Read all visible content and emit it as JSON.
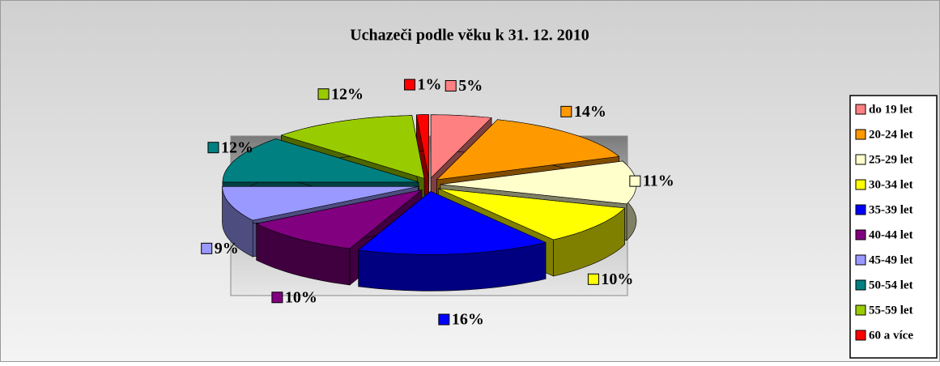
{
  "chart_data": {
    "type": "pie3d",
    "title": "Uchazeči podle věku k 31. 12. 2010",
    "categories": [
      "do 19 let",
      "20-24 let",
      "25-29 let",
      "30-34 let",
      "35-39 let",
      "40-44 let",
      "45-49 let",
      "50-54 let",
      "55-59 let",
      "60 a více"
    ],
    "values": [
      5,
      14,
      11,
      10,
      16,
      10,
      9,
      12,
      12,
      1
    ],
    "value_labels": [
      "5%",
      "14%",
      "11%",
      "10%",
      "16%",
      "10%",
      "9%",
      "12%",
      "12%",
      "1%"
    ],
    "colors": [
      "#ff8080",
      "#ff9900",
      "#ffffcc",
      "#ffff00",
      "#0000ff",
      "#800080",
      "#9999ff",
      "#008080",
      "#99cc00",
      "#ff0000"
    ],
    "legend": "right"
  }
}
